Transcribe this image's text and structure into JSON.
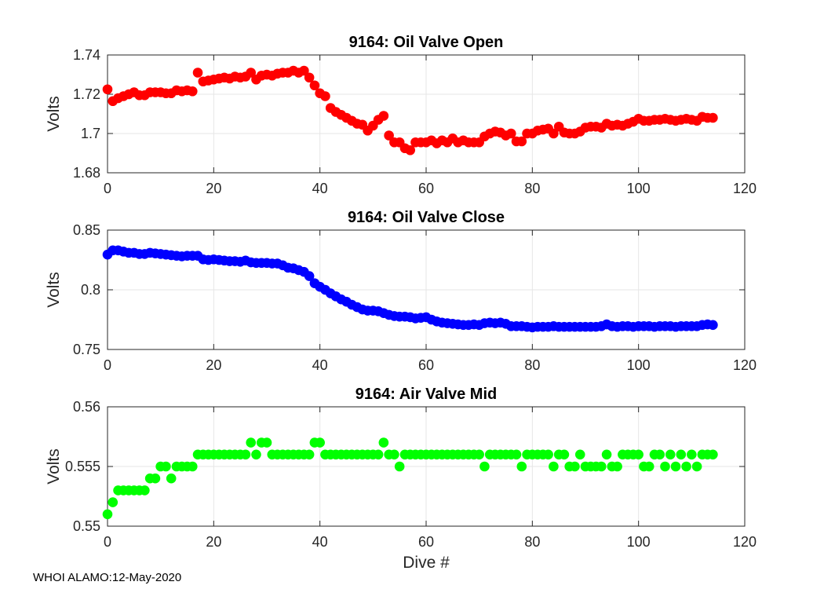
{
  "footer": "WHOI ALAMO:12-May-2020",
  "chart_data": [
    {
      "type": "scatter",
      "title": "9164: Oil Valve Open",
      "ylabel": "Volts",
      "xlabel": "",
      "color": "#ff0000",
      "xlim": [
        0,
        120
      ],
      "ylim": [
        1.68,
        1.74
      ],
      "xticks": [
        0,
        20,
        40,
        60,
        80,
        100,
        120
      ],
      "yticks": [
        1.68,
        1.7,
        1.72,
        1.74
      ],
      "yticklabels": [
        "1.68",
        "1.7",
        "1.72",
        "1.74"
      ],
      "grid": true,
      "x": [
        0,
        1,
        2,
        3,
        4,
        5,
        6,
        7,
        8,
        9,
        10,
        11,
        12,
        13,
        14,
        15,
        16,
        17,
        18,
        19,
        20,
        21,
        22,
        23,
        24,
        25,
        26,
        27,
        28,
        29,
        30,
        31,
        32,
        33,
        34,
        35,
        36,
        37,
        38,
        39,
        40,
        41,
        42,
        43,
        44,
        45,
        46,
        47,
        48,
        49,
        50,
        51,
        52,
        53,
        54,
        55,
        56,
        57,
        58,
        59,
        60,
        61,
        62,
        63,
        64,
        65,
        66,
        67,
        68,
        69,
        70,
        71,
        72,
        73,
        74,
        75,
        76,
        77,
        78,
        79,
        80,
        81,
        82,
        83,
        84,
        85,
        86,
        87,
        88,
        89,
        90,
        91,
        92,
        93,
        94,
        95,
        96,
        97,
        98,
        99,
        100,
        101,
        102,
        103,
        104,
        105,
        106,
        107,
        108,
        109,
        110,
        111,
        112,
        113,
        114
      ],
      "y": [
        1.7225,
        1.7165,
        1.718,
        1.719,
        1.72,
        1.721,
        1.7195,
        1.7195,
        1.721,
        1.721,
        1.721,
        1.7205,
        1.7205,
        1.722,
        1.7215,
        1.722,
        1.7215,
        1.731,
        1.7265,
        1.727,
        1.7275,
        1.728,
        1.7285,
        1.728,
        1.729,
        1.7285,
        1.729,
        1.731,
        1.7275,
        1.7295,
        1.73,
        1.7295,
        1.7305,
        1.731,
        1.731,
        1.732,
        1.731,
        1.732,
        1.7285,
        1.7245,
        1.7205,
        1.719,
        1.713,
        1.711,
        1.7095,
        1.708,
        1.7065,
        1.705,
        1.7045,
        1.7015,
        1.704,
        1.707,
        1.709,
        1.699,
        1.6955,
        1.6955,
        1.6925,
        1.6915,
        1.6955,
        1.6955,
        1.6955,
        1.6965,
        1.695,
        1.6965,
        1.6955,
        1.6975,
        1.6955,
        1.6965,
        1.6955,
        1.6955,
        1.6955,
        1.6985,
        1.7,
        1.701,
        1.7005,
        1.699,
        1.7,
        1.696,
        1.696,
        1.7,
        1.7,
        1.7015,
        1.702,
        1.7025,
        1.7,
        1.7035,
        1.7005,
        1.7,
        1.7,
        1.701,
        1.703,
        1.7035,
        1.7035,
        1.703,
        1.705,
        1.704,
        1.7045,
        1.704,
        1.705,
        1.706,
        1.7075,
        1.7065,
        1.7065,
        1.707,
        1.707,
        1.7075,
        1.707,
        1.7065,
        1.707,
        1.7075,
        1.707,
        1.7065,
        1.7085,
        1.708,
        1.708
      ]
    },
    {
      "type": "scatter",
      "title": "9164: Oil Valve Close",
      "ylabel": "Volts",
      "xlabel": "",
      "color": "#0000ff",
      "xlim": [
        0,
        120
      ],
      "ylim": [
        0.75,
        0.85
      ],
      "xticks": [
        0,
        20,
        40,
        60,
        80,
        100,
        120
      ],
      "yticks": [
        0.75,
        0.8,
        0.85
      ],
      "yticklabels": [
        "0.75",
        "0.8",
        "0.85"
      ],
      "grid": true,
      "x": [
        0,
        1,
        2,
        3,
        4,
        5,
        6,
        7,
        8,
        9,
        10,
        11,
        12,
        13,
        14,
        15,
        16,
        17,
        18,
        19,
        20,
        21,
        22,
        23,
        24,
        25,
        26,
        27,
        28,
        29,
        30,
        31,
        32,
        33,
        34,
        35,
        36,
        37,
        38,
        39,
        40,
        41,
        42,
        43,
        44,
        45,
        46,
        47,
        48,
        49,
        50,
        51,
        52,
        53,
        54,
        55,
        56,
        57,
        58,
        59,
        60,
        61,
        62,
        63,
        64,
        65,
        66,
        67,
        68,
        69,
        70,
        71,
        72,
        73,
        74,
        75,
        76,
        77,
        78,
        79,
        80,
        81,
        82,
        83,
        84,
        85,
        86,
        87,
        88,
        89,
        90,
        91,
        92,
        93,
        94,
        95,
        96,
        97,
        98,
        99,
        100,
        101,
        102,
        103,
        104,
        105,
        106,
        107,
        108,
        109,
        110,
        111,
        112,
        113,
        114
      ],
      "y": [
        0.8295,
        0.833,
        0.833,
        0.832,
        0.831,
        0.831,
        0.83,
        0.83,
        0.831,
        0.8305,
        0.83,
        0.8295,
        0.829,
        0.8285,
        0.828,
        0.8285,
        0.8285,
        0.8285,
        0.8255,
        0.825,
        0.8255,
        0.825,
        0.8245,
        0.824,
        0.824,
        0.8235,
        0.8245,
        0.823,
        0.8225,
        0.8225,
        0.8225,
        0.822,
        0.822,
        0.8205,
        0.8185,
        0.818,
        0.8165,
        0.815,
        0.8115,
        0.8055,
        0.8025,
        0.8,
        0.797,
        0.7945,
        0.792,
        0.79,
        0.7875,
        0.7855,
        0.7835,
        0.7825,
        0.7825,
        0.782,
        0.7805,
        0.779,
        0.778,
        0.7775,
        0.7775,
        0.777,
        0.776,
        0.7765,
        0.777,
        0.775,
        0.7735,
        0.7725,
        0.772,
        0.7715,
        0.771,
        0.7705,
        0.7705,
        0.771,
        0.7705,
        0.772,
        0.7725,
        0.772,
        0.7725,
        0.7715,
        0.7695,
        0.7695,
        0.7695,
        0.769,
        0.7685,
        0.769,
        0.769,
        0.769,
        0.7695,
        0.769,
        0.769,
        0.769,
        0.769,
        0.769,
        0.769,
        0.769,
        0.769,
        0.7695,
        0.771,
        0.7695,
        0.769,
        0.7695,
        0.7695,
        0.769,
        0.7695,
        0.7695,
        0.7695,
        0.769,
        0.7695,
        0.7695,
        0.7695,
        0.769,
        0.7695,
        0.7695,
        0.7695,
        0.7695,
        0.7705,
        0.771,
        0.7705
      ]
    },
    {
      "type": "scatter",
      "title": "9164: Air Valve Mid",
      "ylabel": "Volts",
      "xlabel": "Dive #",
      "color": "#00ff00",
      "xlim": [
        0,
        120
      ],
      "ylim": [
        0.55,
        0.56
      ],
      "xticks": [
        0,
        20,
        40,
        60,
        80,
        100,
        120
      ],
      "yticks": [
        0.55,
        0.555,
        0.56
      ],
      "yticklabels": [
        "0.55",
        "0.555",
        "0.56"
      ],
      "grid": true,
      "x": [
        0,
        1,
        2,
        3,
        4,
        5,
        6,
        7,
        8,
        9,
        10,
        11,
        12,
        13,
        14,
        15,
        16,
        17,
        18,
        19,
        20,
        21,
        22,
        23,
        24,
        25,
        26,
        27,
        28,
        29,
        30,
        31,
        32,
        33,
        34,
        35,
        36,
        37,
        38,
        39,
        40,
        41,
        42,
        43,
        44,
        45,
        46,
        47,
        48,
        49,
        50,
        51,
        52,
        53,
        54,
        55,
        56,
        57,
        58,
        59,
        60,
        61,
        62,
        63,
        64,
        65,
        66,
        67,
        68,
        69,
        70,
        71,
        72,
        73,
        74,
        75,
        76,
        77,
        78,
        79,
        80,
        81,
        82,
        83,
        84,
        85,
        86,
        87,
        88,
        89,
        90,
        91,
        92,
        93,
        94,
        95,
        96,
        97,
        98,
        99,
        100,
        101,
        102,
        103,
        104,
        105,
        106,
        107,
        108,
        109,
        110,
        111,
        112,
        113,
        114
      ],
      "y": [
        0.551,
        0.552,
        0.553,
        0.553,
        0.553,
        0.553,
        0.553,
        0.553,
        0.554,
        0.554,
        0.555,
        0.555,
        0.554,
        0.555,
        0.555,
        0.555,
        0.555,
        0.556,
        0.556,
        0.556,
        0.556,
        0.556,
        0.556,
        0.556,
        0.556,
        0.556,
        0.556,
        0.557,
        0.556,
        0.557,
        0.557,
        0.556,
        0.556,
        0.556,
        0.556,
        0.556,
        0.556,
        0.556,
        0.556,
        0.557,
        0.557,
        0.556,
        0.556,
        0.556,
        0.556,
        0.556,
        0.556,
        0.556,
        0.556,
        0.556,
        0.556,
        0.556,
        0.557,
        0.556,
        0.556,
        0.555,
        0.556,
        0.556,
        0.556,
        0.556,
        0.556,
        0.556,
        0.556,
        0.556,
        0.556,
        0.556,
        0.556,
        0.556,
        0.556,
        0.556,
        0.556,
        0.555,
        0.556,
        0.556,
        0.556,
        0.556,
        0.556,
        0.556,
        0.555,
        0.556,
        0.556,
        0.556,
        0.556,
        0.556,
        0.555,
        0.556,
        0.556,
        0.555,
        0.555,
        0.556,
        0.555,
        0.555,
        0.555,
        0.555,
        0.556,
        0.555,
        0.555,
        0.556,
        0.556,
        0.556,
        0.556,
        0.555,
        0.555,
        0.556,
        0.556,
        0.555,
        0.556,
        0.555,
        0.556,
        0.555,
        0.556,
        0.555,
        0.556,
        0.556,
        0.556
      ]
    }
  ]
}
